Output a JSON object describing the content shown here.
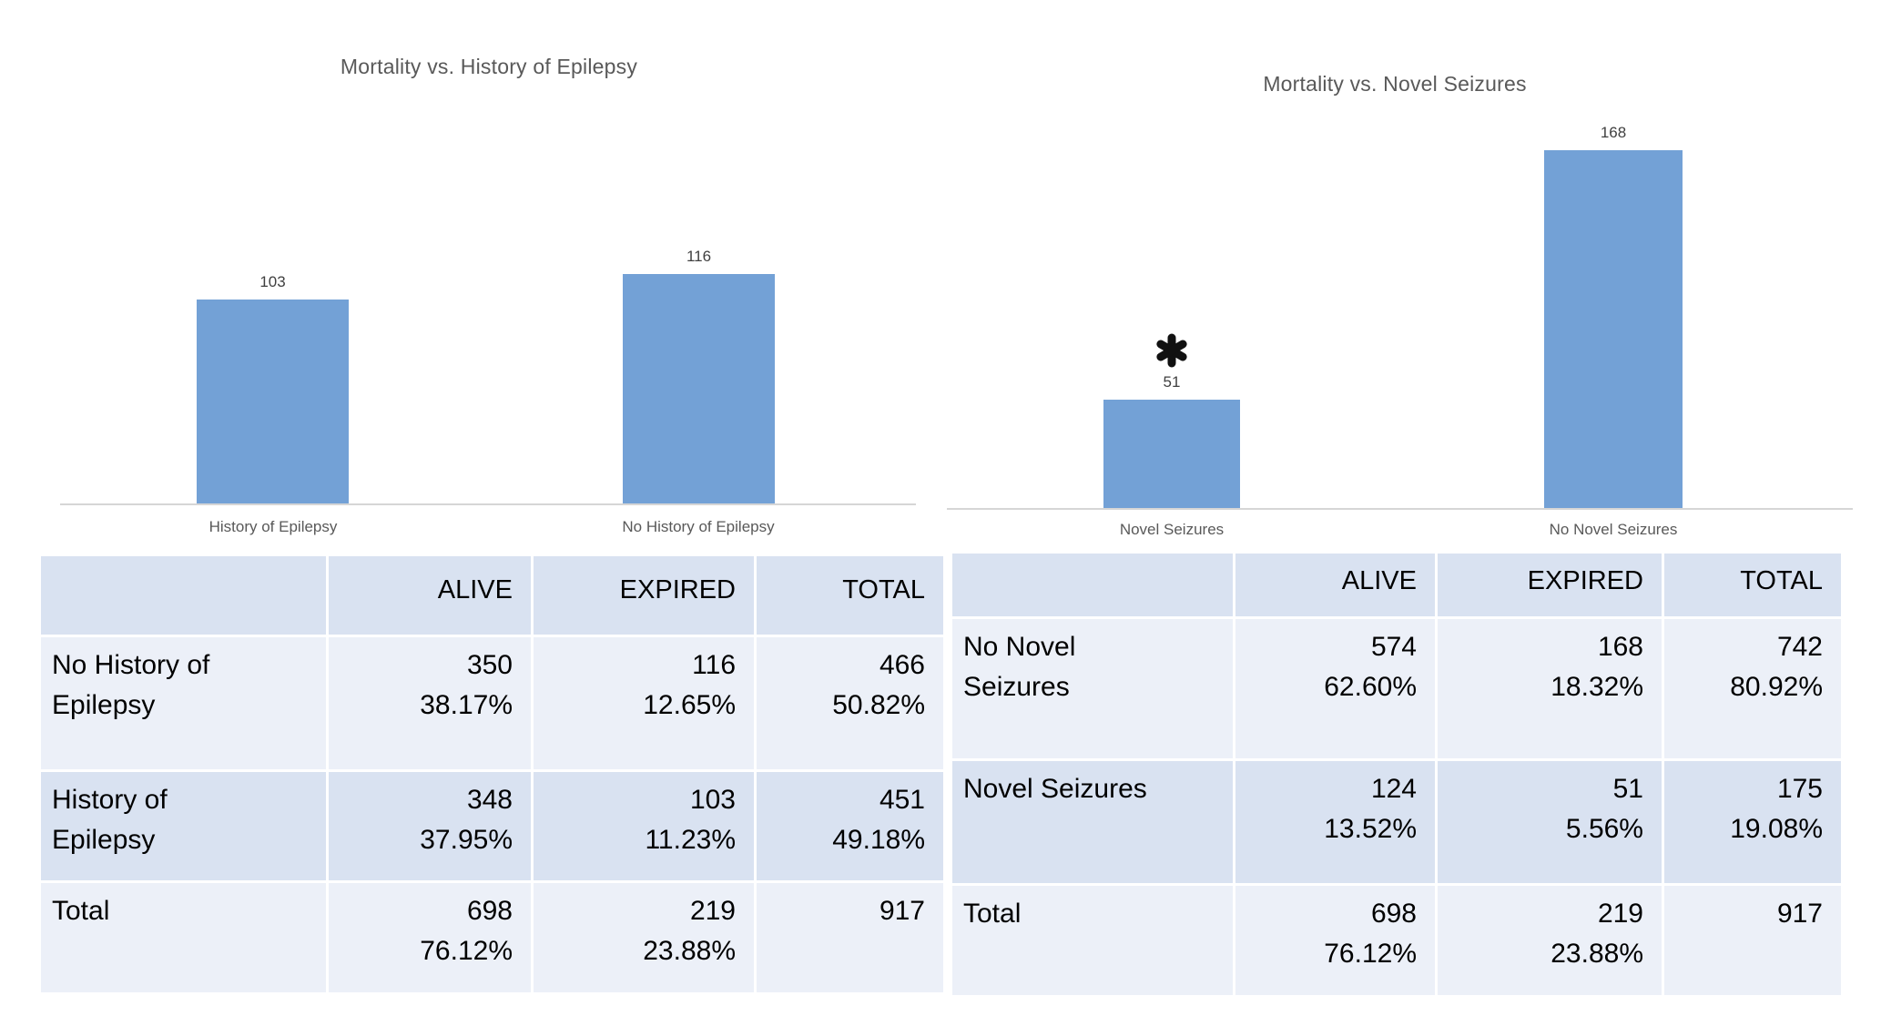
{
  "colors": {
    "bar": "#73A1D6",
    "title_text": "#595959",
    "value_label_text": "#404040",
    "category_label_text": "#595959",
    "axis_line": "#D6D6D6",
    "table_header_bg": "#D9E2F1",
    "band_dark": "#D9E2F1",
    "band_light": "#ECF0F8",
    "table_text": "#000000",
    "asterisk": "#111111"
  },
  "chart_data": [
    {
      "type": "bar",
      "title": "Mortality vs. History of Epilepsy",
      "categories": [
        "History of Epilepsy",
        "No History of Epilepsy"
      ],
      "values": [
        103,
        116
      ],
      "data_labels": true,
      "grid": false,
      "y_axis_visible": false,
      "legend": "none"
    },
    {
      "type": "bar",
      "title": "Mortality vs. Novel Seizures",
      "categories": [
        "Novel Seizures",
        "No Novel Seizures"
      ],
      "values": [
        51,
        168
      ],
      "data_labels": true,
      "grid": false,
      "y_axis_visible": false,
      "legend": "none",
      "annotations": [
        {
          "category": "Novel Seizures",
          "symbol": "*",
          "position": "above-bar"
        }
      ]
    }
  ],
  "tables": [
    {
      "headers": [
        "",
        "ALIVE",
        "EXPIRED",
        "TOTAL"
      ],
      "rows": [
        {
          "label": "No History of\nEpilepsy",
          "alive": "350\n38.17%",
          "expired": "116\n12.65%",
          "total": "466\n50.82%"
        },
        {
          "label": "History of\nEpilepsy",
          "alive": "348\n37.95%",
          "expired": "103\n11.23%",
          "total": "451\n49.18%"
        },
        {
          "label": "Total",
          "alive": "698\n76.12%",
          "expired": "219\n23.88%",
          "total": "917"
        }
      ]
    },
    {
      "headers": [
        "",
        "ALIVE",
        "EXPIRED",
        "TOTAL"
      ],
      "rows": [
        {
          "label": "No Novel\nSeizures",
          "alive": "574\n62.60%",
          "expired": "168\n18.32%",
          "total": "742\n80.92%"
        },
        {
          "label": "Novel Seizures",
          "alive": "124\n13.52%",
          "expired": "51\n5.56%",
          "total": "175\n19.08%"
        },
        {
          "label": "Total",
          "alive": "698\n76.12%",
          "expired": "219\n23.88%",
          "total": "917"
        }
      ]
    }
  ]
}
